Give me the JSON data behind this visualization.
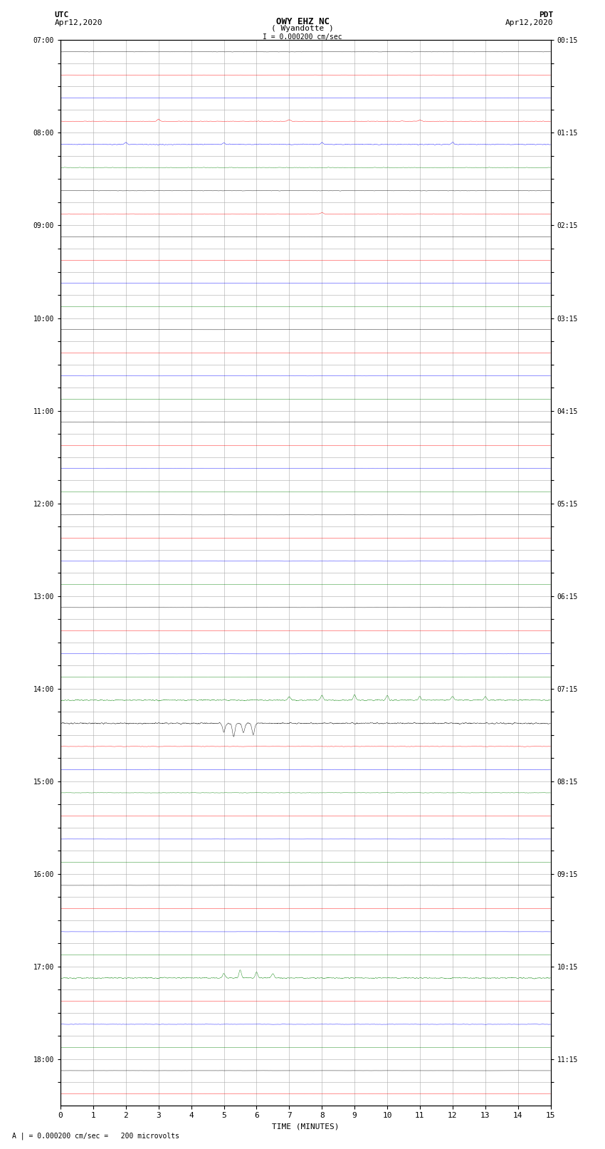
{
  "title_line1": "OWY EHZ NC",
  "title_line2": "( Wyandotte )",
  "scale_label": "I = 0.000200 cm/sec",
  "left_header": "UTC",
  "left_date": "Apr12,2020",
  "right_header": "PDT",
  "right_date": "Apr12,2020",
  "footer_label": "A | = 0.000200 cm/sec =   200 microvolts",
  "xlabel": "TIME (MINUTES)",
  "n_rows": 46,
  "n_minutes": 15,
  "colors": {
    "black": "#000000",
    "red": "#ff0000",
    "blue": "#0000ff",
    "green": "#008000",
    "grid": "#aaaaaa",
    "bg": "#ffffff"
  }
}
